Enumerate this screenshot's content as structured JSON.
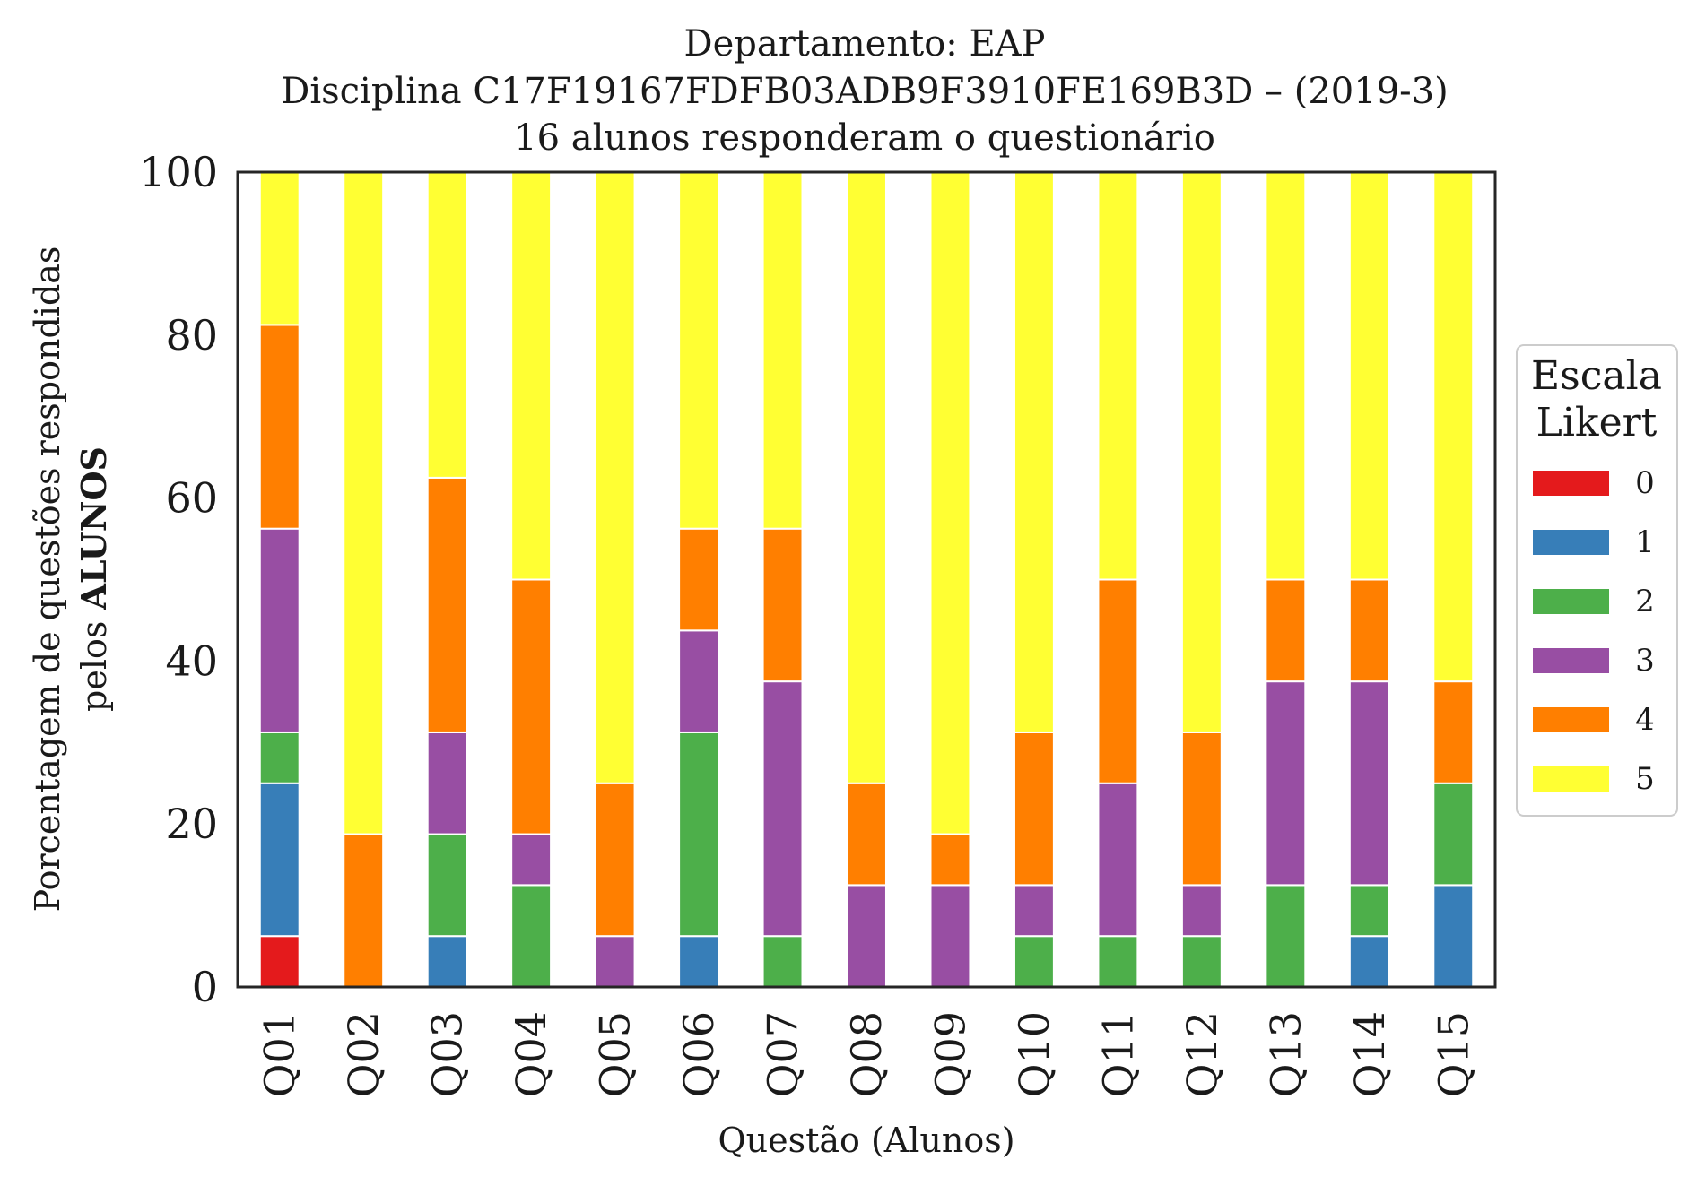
{
  "chart_data": {
    "type": "bar",
    "stacked": true,
    "title": [
      "Departamento: EAP",
      "Disciplina C17F19167FDFB03ADB9F3910FE169B3D – (2019-3)",
      "16 alunos responderam o questionário"
    ],
    "xlabel": "Questão (Alunos)",
    "ylabel_line1": "Porcentagem de questões respondidas",
    "ylabel_line2_prefix": "pelos ",
    "ylabel_line2_bold": "ALUNOS",
    "ylim": [
      0,
      100
    ],
    "yticks": [
      "0",
      "20",
      "40",
      "60",
      "80",
      "100"
    ],
    "grid": false,
    "legend_title": [
      "Escala",
      "Likert"
    ],
    "legend_position": "right",
    "categories": [
      "Q01",
      "Q02",
      "Q03",
      "Q04",
      "Q05",
      "Q06",
      "Q07",
      "Q08",
      "Q09",
      "Q10",
      "Q11",
      "Q12",
      "Q13",
      "Q14",
      "Q15"
    ],
    "series": [
      {
        "name": "0",
        "color": "#e41a1c",
        "values": [
          6.25,
          0,
          0,
          0,
          0,
          0,
          0,
          0,
          0,
          0,
          0,
          0,
          0,
          0,
          0
        ]
      },
      {
        "name": "1",
        "color": "#377eb8",
        "values": [
          18.75,
          0,
          6.25,
          0,
          0,
          6.25,
          0,
          0,
          0,
          0,
          0,
          0,
          0,
          6.25,
          12.5
        ]
      },
      {
        "name": "2",
        "color": "#4daf4a",
        "values": [
          6.25,
          0,
          12.5,
          12.5,
          0,
          25,
          6.25,
          0,
          0,
          6.25,
          6.25,
          6.25,
          12.5,
          6.25,
          12.5
        ]
      },
      {
        "name": "3",
        "color": "#984ea3",
        "values": [
          25,
          0,
          12.5,
          6.25,
          6.25,
          12.5,
          31.25,
          12.5,
          12.5,
          6.25,
          18.75,
          6.25,
          25,
          25,
          0
        ]
      },
      {
        "name": "4",
        "color": "#ff7f00",
        "values": [
          25,
          18.75,
          31.25,
          31.25,
          18.75,
          12.5,
          18.75,
          12.5,
          6.25,
          18.75,
          25,
          18.75,
          12.5,
          12.5,
          12.5
        ]
      },
      {
        "name": "5",
        "color": "#ffff33",
        "values": [
          18.75,
          81.25,
          37.5,
          50,
          75,
          43.75,
          43.75,
          75,
          81.25,
          68.75,
          50,
          68.75,
          50,
          50,
          62.5
        ]
      }
    ]
  }
}
